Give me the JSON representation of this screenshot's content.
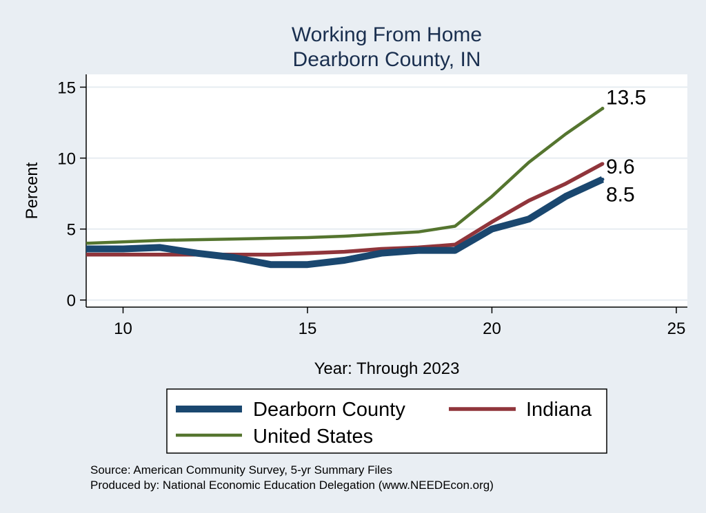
{
  "chart_data": {
    "type": "line",
    "title": [
      "Working From Home",
      "Dearborn County, IN"
    ],
    "xlabel": "Year: Through 2023",
    "ylabel": "Percent",
    "xlim": [
      9,
      25.3
    ],
    "ylim": [
      -0.5,
      15.9
    ],
    "xticks": [
      10,
      15,
      20,
      25
    ],
    "yticks": [
      0,
      5,
      10,
      15
    ],
    "grid": true,
    "legend_position": "bottom",
    "x": [
      9,
      10,
      11,
      12,
      13,
      14,
      15,
      16,
      17,
      18,
      19,
      20,
      21,
      22,
      23
    ],
    "series": [
      {
        "name": "Dearborn County",
        "color": "#1a476f",
        "values": [
          3.6,
          3.6,
          3.7,
          3.3,
          3.0,
          2.5,
          2.5,
          2.8,
          3.3,
          3.5,
          3.5,
          5.0,
          5.7,
          7.3,
          8.5
        ],
        "end_label": "8.5"
      },
      {
        "name": "Indiana",
        "color": "#90353b",
        "values": [
          3.2,
          3.2,
          3.2,
          3.2,
          3.2,
          3.2,
          3.3,
          3.4,
          3.6,
          3.7,
          3.9,
          5.5,
          7.0,
          8.2,
          9.6
        ],
        "end_label": "9.6"
      },
      {
        "name": "United States",
        "color": "#55752f",
        "values": [
          4.0,
          4.1,
          4.2,
          4.25,
          4.3,
          4.35,
          4.4,
          4.5,
          4.65,
          4.8,
          5.2,
          7.3,
          9.7,
          11.7,
          13.5
        ],
        "end_label": "13.5"
      }
    ],
    "notes": [
      "Source: American Community Survey, 5-yr Summary Files",
      "Produced by: National Economic Education Delegation (www.NEEDEcon.org)"
    ]
  }
}
